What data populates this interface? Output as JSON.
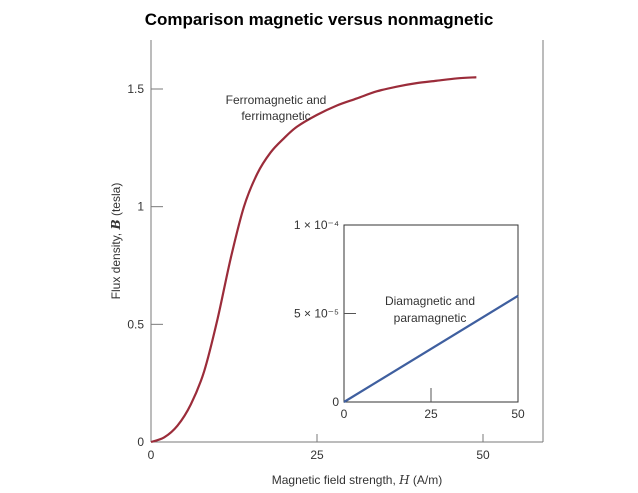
{
  "title": "Comparison magnetic versus nonmagnetic",
  "chart_data": [
    {
      "type": "line",
      "xlabel": "Magnetic field strength, H (A/m)",
      "ylabel": "Flux density, B (tesla)",
      "xlim": [
        0,
        55
      ],
      "ylim": [
        0,
        1.7
      ],
      "x_ticks": [
        "0",
        "25",
        "50"
      ],
      "y_ticks": [
        "0",
        "0.5",
        "1",
        "1.5"
      ],
      "grid": false,
      "series": [
        {
          "name": "Ferromagnetic and ferrimagnetic",
          "color": "#9b2c3a",
          "x": [
            0,
            2,
            4,
            6,
            8,
            10,
            12,
            14,
            16,
            18,
            20,
            22,
            25,
            28,
            31,
            34,
            37,
            40,
            43,
            46,
            49
          ],
          "y": [
            0,
            0.02,
            0.07,
            0.16,
            0.3,
            0.52,
            0.78,
            1.0,
            1.14,
            1.23,
            1.29,
            1.34,
            1.39,
            1.43,
            1.46,
            1.49,
            1.51,
            1.525,
            1.535,
            1.545,
            1.55
          ]
        }
      ]
    },
    {
      "type": "line",
      "inset": true,
      "xlim": [
        0,
        50
      ],
      "ylim": [
        0,
        0.0001
      ],
      "x_ticks": [
        "0",
        "25",
        "50"
      ],
      "y_ticks": [
        "0",
        "5 × 10⁻⁵",
        "1 × 10⁻⁴"
      ],
      "grid": false,
      "series": [
        {
          "name": "Diamagnetic and paramagnetic",
          "color": "#3f5f9f",
          "x": [
            0,
            50
          ],
          "y": [
            0,
            6e-05
          ]
        }
      ]
    }
  ],
  "annotations": {
    "ferro_line1": "Ferromagnetic and",
    "ferro_line2": "ferrimagnetic",
    "dia_line1": "Diamagnetic and",
    "dia_line2": "paramagnetic"
  },
  "axis_labels": {
    "x_prefix": "Magnetic field strength, ",
    "x_var": "H",
    "x_suffix": " (A/m)",
    "y_prefix": "Flux density, ",
    "y_var": "B",
    "y_suffix": " (tesla)"
  },
  "colors": {
    "axis": "#7a7a7a",
    "ferro": "#9b2c3a",
    "dia": "#3f5f9f"
  }
}
